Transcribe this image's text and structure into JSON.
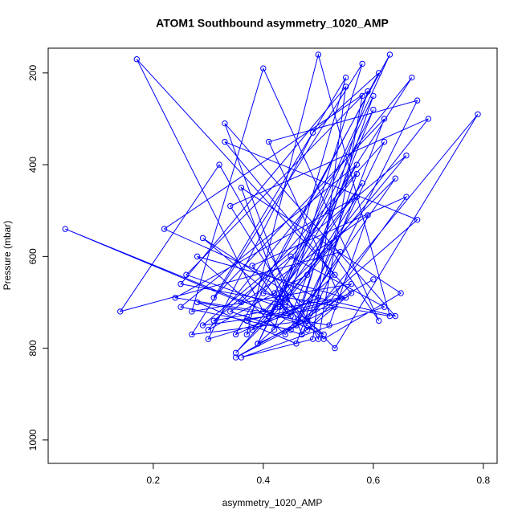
{
  "chart_data": {
    "type": "line",
    "markers": true,
    "title": "ATOM1 Southbound asymmetry_1020_AMP",
    "x_label": "asymmetry_1020_AMP",
    "y_label": "Pressure (mbar)",
    "xlim": [
      0.009,
      0.825
    ],
    "ylim": [
      1051,
      146
    ],
    "xticks": [
      0.2,
      0.4,
      0.6,
      0.8
    ],
    "yticks": [
      200,
      400,
      600,
      800,
      1000
    ],
    "series": [
      {
        "color": "#0000ff",
        "x": [
          0.42,
          0.55,
          0.31,
          0.62,
          0.48,
          0.27,
          0.58,
          0.44,
          0.36,
          0.65,
          0.51,
          0.29,
          0.47,
          0.6,
          0.39,
          0.53,
          0.33,
          0.68,
          0.45,
          0.25,
          0.57,
          0.41,
          0.63,
          0.35,
          0.5,
          0.22,
          0.59,
          0.46,
          0.38,
          0.66,
          0.52,
          0.3,
          0.49,
          0.61,
          0.37,
          0.55,
          0.28,
          0.44,
          0.64,
          0.4,
          0.17,
          0.56,
          0.48,
          0.34,
          0.7,
          0.43,
          0.26,
          0.58,
          0.5,
          0.32,
          0.14,
          0.54,
          0.46,
          0.62,
          0.36,
          0.04,
          0.51,
          0.42,
          0.67,
          0.3,
          0.48,
          0.57,
          0.24,
          0.45,
          0.6,
          0.39,
          0.53,
          0.29,
          0.66,
          0.44,
          0.35,
          0.52,
          0.61,
          0.4,
          0.27,
          0.56,
          0.47,
          0.33,
          0.64,
          0.5,
          0.38,
          0.58,
          0.43,
          0.25,
          0.55,
          0.49,
          0.36,
          0.62,
          0.45,
          0.31,
          0.54,
          0.41,
          0.68,
          0.47,
          0.34,
          0.59,
          0.52,
          0.28,
          0.46,
          0.57,
          0.4,
          0.63,
          0.5,
          0.37,
          0.44,
          0.53,
          0.79,
          0.48,
          0.35,
          0.6
        ],
        "values": [
          760,
          210,
          690,
          300,
          740,
          770,
          180,
          720,
          450,
          680,
          780,
          560,
          700,
          250,
          790,
          640,
          350,
          520,
          760,
          710,
          400,
          730,
          160,
          770,
          690,
          540,
          240,
          750,
          620,
          470,
          700,
          780,
          330,
          200,
          740,
          690,
          600,
          770,
          430,
          720,
          170,
          680,
          760,
          490,
          300,
          710,
          640,
          250,
          780,
          400,
          720,
          590,
          750,
          350,
          700,
          540,
          770,
          680,
          210,
          760,
          640,
          470,
          690,
          730,
          280,
          790,
          710,
          750,
          380,
          700,
          810,
          580,
          740,
          190,
          720,
          660,
          770,
          310,
          730,
          690,
          760,
          440,
          700,
          660,
          230,
          780,
          820,
          710,
          600,
          740,
          690,
          350,
          260,
          770,
          720,
          510,
          750,
          700,
          790,
          420,
          680,
          730,
          160,
          770,
          690,
          800,
          290,
          740,
          820,
          650
        ]
      }
    ]
  }
}
